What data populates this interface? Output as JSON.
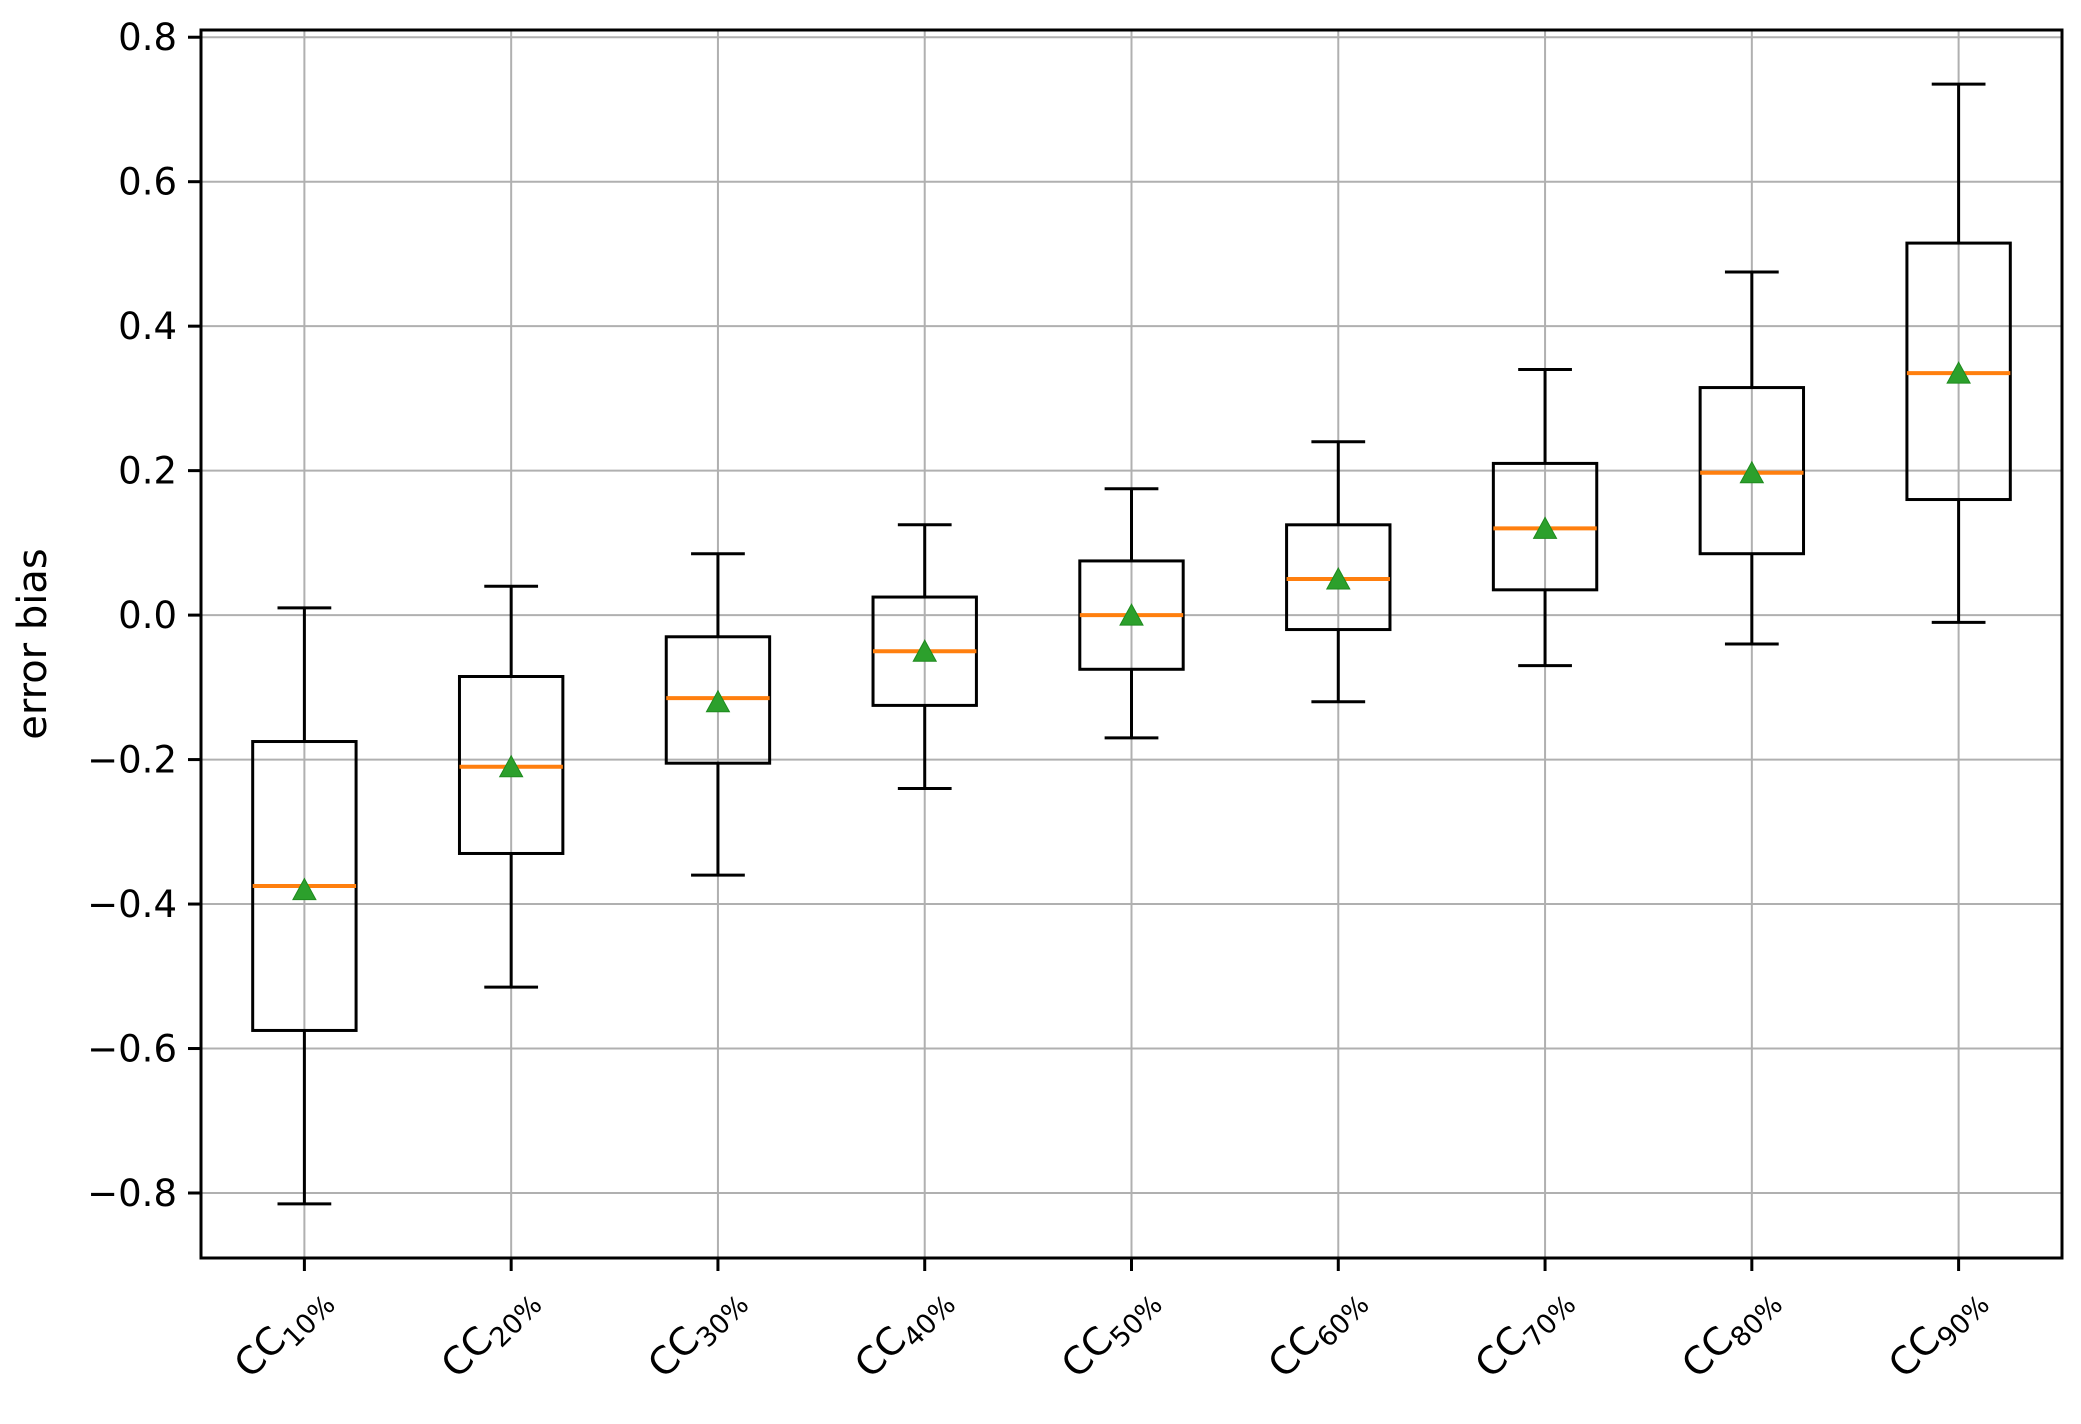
{
  "chart_data": {
    "type": "box",
    "title": "",
    "xlabel": "",
    "ylabel": "error bias",
    "ylim": [
      -0.89,
      0.81
    ],
    "grid": true,
    "grid_color": "#b0b0b0",
    "box_color": "#000000",
    "median_color": "#ff7f0e",
    "mean_marker_color": "#2ca02c",
    "mean_marker": "triangle-up",
    "yticks": [
      {
        "value": 0.8,
        "label": "0.8"
      },
      {
        "value": 0.6,
        "label": "0.6"
      },
      {
        "value": 0.4,
        "label": "0.4"
      },
      {
        "value": 0.2,
        "label": "0.2"
      },
      {
        "value": 0.0,
        "label": "0.0"
      },
      {
        "value": -0.2,
        "label": "−0.2"
      },
      {
        "value": -0.4,
        "label": "−0.4"
      },
      {
        "value": -0.6,
        "label": "−0.6"
      },
      {
        "value": -0.8,
        "label": "−0.8"
      }
    ],
    "categories": [
      "CC10%",
      "CC20%",
      "CC30%",
      "CC40%",
      "CC50%",
      "CC60%",
      "CC70%",
      "CC80%",
      "CC90%"
    ],
    "category_label_parts": [
      {
        "base": "CC",
        "sub": "10%"
      },
      {
        "base": "CC",
        "sub": "20%"
      },
      {
        "base": "CC",
        "sub": "30%"
      },
      {
        "base": "CC",
        "sub": "40%"
      },
      {
        "base": "CC",
        "sub": "50%"
      },
      {
        "base": "CC",
        "sub": "60%"
      },
      {
        "base": "CC",
        "sub": "70%"
      },
      {
        "base": "CC",
        "sub": "80%"
      },
      {
        "base": "CC",
        "sub": "90%"
      }
    ],
    "boxes": [
      {
        "category": "CC10%",
        "whisker_low": -0.815,
        "q1": -0.575,
        "median": -0.375,
        "mean": -0.38,
        "q3": -0.175,
        "whisker_high": 0.01
      },
      {
        "category": "CC20%",
        "whisker_low": -0.515,
        "q1": -0.33,
        "median": -0.21,
        "mean": -0.21,
        "q3": -0.085,
        "whisker_high": 0.04
      },
      {
        "category": "CC30%",
        "whisker_low": -0.36,
        "q1": -0.205,
        "median": -0.115,
        "mean": -0.12,
        "q3": -0.03,
        "whisker_high": 0.085
      },
      {
        "category": "CC40%",
        "whisker_low": -0.24,
        "q1": -0.125,
        "median": -0.05,
        "mean": -0.05,
        "q3": 0.025,
        "whisker_high": 0.125
      },
      {
        "category": "CC50%",
        "whisker_low": -0.17,
        "q1": -0.075,
        "median": 0.0,
        "mean": 0.0,
        "q3": 0.075,
        "whisker_high": 0.175
      },
      {
        "category": "CC60%",
        "whisker_low": -0.12,
        "q1": -0.02,
        "median": 0.05,
        "mean": 0.05,
        "q3": 0.125,
        "whisker_high": 0.24
      },
      {
        "category": "CC70%",
        "whisker_low": -0.07,
        "q1": 0.035,
        "median": 0.12,
        "mean": 0.12,
        "q3": 0.21,
        "whisker_high": 0.34
      },
      {
        "category": "CC80%",
        "whisker_low": -0.04,
        "q1": 0.085,
        "median": 0.197,
        "mean": 0.197,
        "q3": 0.315,
        "whisker_high": 0.475
      },
      {
        "category": "CC90%",
        "whisker_low": -0.01,
        "q1": 0.16,
        "median": 0.335,
        "mean": 0.335,
        "q3": 0.515,
        "whisker_high": 0.735
      }
    ]
  }
}
